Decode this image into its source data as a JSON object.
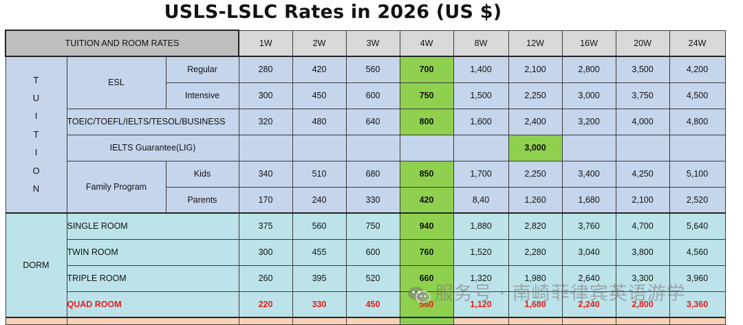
{
  "title": "USLS-LSLC Rates in 2026 (US $)",
  "header": {
    "main": "TUITION AND ROOM RATES",
    "weeks": [
      "1W",
      "2W",
      "3W",
      "4W",
      "8W",
      "12W",
      "16W",
      "20W",
      "24W"
    ]
  },
  "tuition": {
    "label_letters": [
      "T",
      "U",
      "I",
      "T",
      "I",
      "O",
      "N"
    ],
    "esl": {
      "label": "ESL",
      "regular": {
        "label": "Regular",
        "values": [
          "280",
          "420",
          "560",
          "700",
          "1,400",
          "2,100",
          "2,800",
          "3,500",
          "4,200"
        ]
      },
      "intensive": {
        "label": "Intensive",
        "values": [
          "300",
          "450",
          "600",
          "750",
          "1,500",
          "2,250",
          "3,000",
          "3,750",
          "4,500"
        ]
      }
    },
    "toeic": {
      "label": "TOEIC/TOEFL/IELTS/TESOL/BUSINESS",
      "values": [
        "320",
        "480",
        "640",
        "800",
        "1,600",
        "2,400",
        "3,200",
        "4,000",
        "4,800"
      ]
    },
    "lig": {
      "label": "IELTS Guarantee(LIG)",
      "value_12w": "3,000"
    },
    "family": {
      "label": "Family Program",
      "kids": {
        "label": "Kids",
        "values": [
          "340",
          "510",
          "680",
          "850",
          "1,700",
          "2,250",
          "3,400",
          "4,250",
          "5,100"
        ]
      },
      "parents": {
        "label": "Parents",
        "values": [
          "170",
          "240",
          "330",
          "420",
          "8,40",
          "1,260",
          "1,680",
          "2,100",
          "2,520"
        ]
      }
    }
  },
  "dorm": {
    "label": "DORM",
    "single": {
      "label": "SINGLE ROOM",
      "values": [
        "375",
        "560",
        "750",
        "940",
        "1,880",
        "2,820",
        "3,760",
        "4,700",
        "5,640"
      ]
    },
    "twin": {
      "label": "TWIN ROOM",
      "values": [
        "300",
        "455",
        "600",
        "760",
        "1,520",
        "2,280",
        "3,040",
        "3,800",
        "4,560"
      ]
    },
    "triple": {
      "label": "TRIPLE ROOM",
      "values": [
        "260",
        "395",
        "520",
        "660",
        "1,320",
        "1,980",
        "2,640",
        "3,300",
        "3,960"
      ]
    },
    "quad": {
      "label": "QUAD ROOM",
      "values": [
        "220",
        "330",
        "450",
        "560",
        "1,120",
        "1,680",
        "2,240",
        "2,800",
        "3,360"
      ]
    }
  },
  "watermark": "服务号 · 南崎菲律宾英语游学",
  "colors": {
    "tuition_bg": "#c5d5ec",
    "dorm_bg": "#bde3ea",
    "highlight": "#8fd14f",
    "quad_text": "#e0201a"
  }
}
